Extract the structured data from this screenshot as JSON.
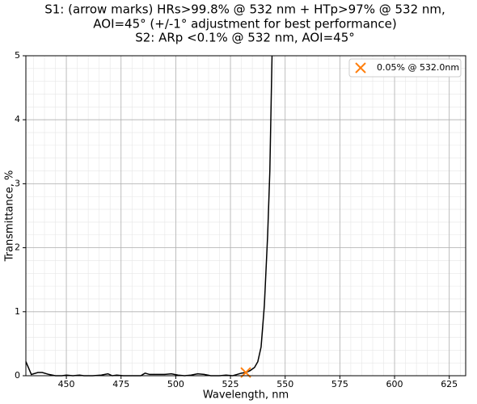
{
  "chart_data": {
    "type": "line",
    "title": [
      "S1: (arrow marks) HRs>99.8% @ 532 nm + HTp>97% @ 532 nm,",
      "AOI=45° (+/-1° adjustment for best performance)",
      "S2: ARp <0.1% @ 532 nm, AOI=45°"
    ],
    "x_label": "Wavelength, nm",
    "y_label": "Transmittance, %",
    "x": [
      431.5,
      434,
      437,
      439,
      442,
      445,
      448,
      450,
      453,
      456,
      458,
      462,
      466,
      469,
      471,
      473,
      476,
      484,
      486,
      488,
      492,
      495,
      498,
      501,
      504,
      507,
      510,
      513,
      516,
      520,
      523,
      526,
      528,
      530,
      532,
      534,
      536,
      537.5,
      539,
      540.5,
      542,
      543,
      544
    ],
    "series": [
      {
        "color": "#000000",
        "values": [
          0.22,
          0.02,
          0.05,
          0.05,
          0.02,
          0.0,
          0.0,
          0.01,
          0.0,
          0.01,
          0.0,
          0.0,
          0.01,
          0.03,
          0.0,
          0.01,
          0.0,
          0.0,
          0.04,
          0.02,
          0.02,
          0.02,
          0.03,
          0.01,
          0.0,
          0.01,
          0.03,
          0.02,
          0.0,
          0.0,
          0.01,
          0.0,
          0.02,
          0.04,
          0.05,
          0.08,
          0.13,
          0.22,
          0.45,
          1.1,
          2.2,
          3.2,
          5
        ]
      },
      {
        "name": "0.05% @ 532.0nm",
        "color": "#ff7f0e",
        "marker": "x",
        "x": [
          532
        ],
        "values": [
          0.05
        ]
      }
    ],
    "xlim": [
      431.5,
      632.5
    ],
    "ylim": [
      0,
      5
    ],
    "xticks": [
      450,
      475,
      500,
      525,
      550,
      575,
      600,
      625
    ],
    "yticks": [
      0,
      1,
      2,
      3,
      4,
      5
    ],
    "grid": true,
    "minor_grid": true,
    "legend": "upper right"
  }
}
